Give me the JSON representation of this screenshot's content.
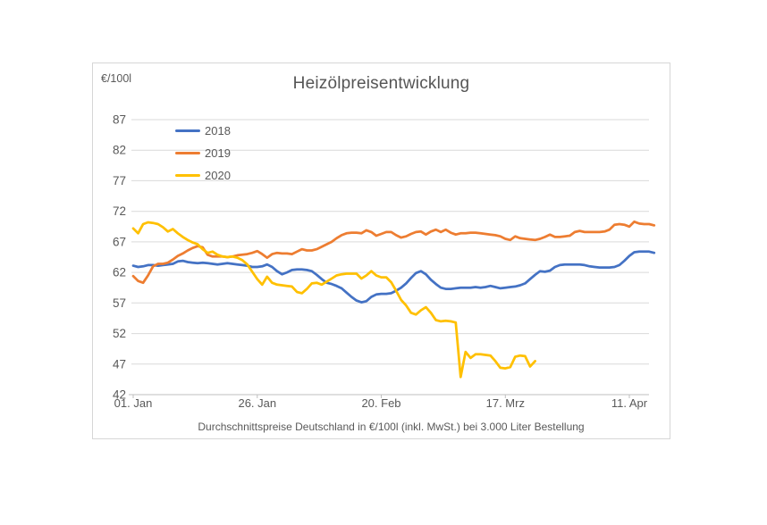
{
  "style": {
    "background": "#FFFFFF",
    "text_color": "#595959",
    "title_color": "#555555",
    "grid_color": "#D9D9D9",
    "axis_color": "#BFBFBF",
    "border_color": "#D6D6D6"
  },
  "chart_data": {
    "type": "line",
    "title": "Heizölpreisentwicklung",
    "ylabel": "€/100l",
    "footer": "Durchschnittspreise Deutschland in €/100l (inkl. MwSt.) bei 3.000 Liter Bestellung",
    "legend_position": "top-left-inside",
    "grid": true,
    "ylim": [
      42,
      87
    ],
    "y_ticks": [
      42,
      47,
      52,
      57,
      62,
      67,
      72,
      77,
      82,
      87
    ],
    "x_tick_labels": [
      "01. Jan",
      "26. Jan",
      "20. Feb",
      "17. Mrz",
      "11. Apr"
    ],
    "x_tick_days": [
      0,
      25,
      50,
      75,
      100
    ],
    "day_range": [
      0,
      105
    ],
    "series": [
      {
        "name": "2018",
        "color": "#4472C4",
        "start_day": 0,
        "values": [
          63.1,
          62.9,
          63.0,
          63.2,
          63.2,
          63.1,
          63.2,
          63.3,
          63.4,
          63.8,
          63.9,
          63.7,
          63.6,
          63.5,
          63.6,
          63.5,
          63.4,
          63.3,
          63.4,
          63.5,
          63.4,
          63.3,
          63.2,
          63.1,
          62.9,
          62.9,
          63.0,
          63.3,
          62.9,
          62.2,
          61.7,
          62.0,
          62.4,
          62.5,
          62.5,
          62.4,
          62.2,
          61.6,
          60.9,
          60.3,
          60.1,
          59.8,
          59.4,
          58.7,
          58.0,
          57.4,
          57.1,
          57.3,
          58.0,
          58.4,
          58.5,
          58.5,
          58.6,
          59.0,
          59.5,
          60.2,
          61.1,
          61.9,
          62.2,
          61.7,
          60.8,
          60.1,
          59.5,
          59.3,
          59.3,
          59.4,
          59.5,
          59.5,
          59.5,
          59.6,
          59.5,
          59.6,
          59.8,
          59.6,
          59.4,
          59.5,
          59.6,
          59.7,
          59.9,
          60.2,
          60.9,
          61.6,
          62.2,
          62.1,
          62.3,
          62.9,
          63.2,
          63.3,
          63.3,
          63.3,
          63.3,
          63.2,
          63.0,
          62.9,
          62.8,
          62.8,
          62.8,
          62.9,
          63.2,
          63.9,
          64.7,
          65.3,
          65.4,
          65.4,
          65.4,
          65.2
        ]
      },
      {
        "name": "2019",
        "color": "#ED7D31",
        "start_day": 0,
        "values": [
          61.4,
          60.6,
          60.3,
          61.5,
          63.0,
          63.4,
          63.4,
          63.6,
          64.1,
          64.7,
          65.1,
          65.6,
          66.0,
          66.3,
          66.1,
          64.9,
          64.6,
          64.6,
          64.6,
          64.5,
          64.6,
          64.8,
          64.9,
          65.0,
          65.2,
          65.5,
          65.0,
          64.4,
          65.0,
          65.2,
          65.1,
          65.1,
          65.0,
          65.4,
          65.8,
          65.6,
          65.6,
          65.8,
          66.2,
          66.6,
          67.0,
          67.6,
          68.1,
          68.4,
          68.5,
          68.5,
          68.4,
          68.9,
          68.6,
          68.0,
          68.3,
          68.6,
          68.6,
          68.1,
          67.7,
          67.9,
          68.3,
          68.6,
          68.7,
          68.2,
          68.7,
          69.0,
          68.6,
          69.0,
          68.5,
          68.2,
          68.4,
          68.4,
          68.5,
          68.5,
          68.4,
          68.3,
          68.2,
          68.1,
          67.9,
          67.5,
          67.3,
          67.9,
          67.6,
          67.5,
          67.4,
          67.3,
          67.5,
          67.8,
          68.2,
          67.8,
          67.8,
          67.9,
          68.0,
          68.6,
          68.8,
          68.6,
          68.6,
          68.6,
          68.6,
          68.7,
          69.0,
          69.8,
          69.9,
          69.8,
          69.5,
          70.3,
          70.0,
          69.9,
          69.9,
          69.7
        ]
      },
      {
        "name": "2020",
        "color": "#FFC000",
        "start_day": 0,
        "values": [
          69.2,
          68.4,
          69.9,
          70.2,
          70.1,
          69.9,
          69.4,
          68.7,
          69.1,
          68.4,
          67.8,
          67.3,
          66.9,
          66.6,
          65.8,
          65.2,
          65.4,
          64.9,
          64.6,
          64.5,
          64.6,
          64.4,
          64.0,
          63.3,
          62.1,
          60.9,
          60.0,
          61.3,
          60.3,
          60.0,
          59.9,
          59.8,
          59.7,
          58.8,
          58.6,
          59.3,
          60.2,
          60.3,
          60.0,
          60.5,
          61.0,
          61.5,
          61.7,
          61.8,
          61.8,
          61.8,
          61.0,
          61.5,
          62.2,
          61.5,
          61.2,
          61.2,
          60.4,
          59.0,
          57.5,
          56.6,
          55.4,
          55.1,
          55.8,
          56.3,
          55.4,
          54.2,
          54.0,
          54.1,
          54.0,
          53.8,
          44.9,
          49.0,
          48.0,
          48.6,
          48.6,
          48.5,
          48.4,
          47.5,
          46.4,
          46.3,
          46.5,
          48.2,
          48.4,
          48.3,
          46.6,
          47.5
        ]
      }
    ]
  }
}
